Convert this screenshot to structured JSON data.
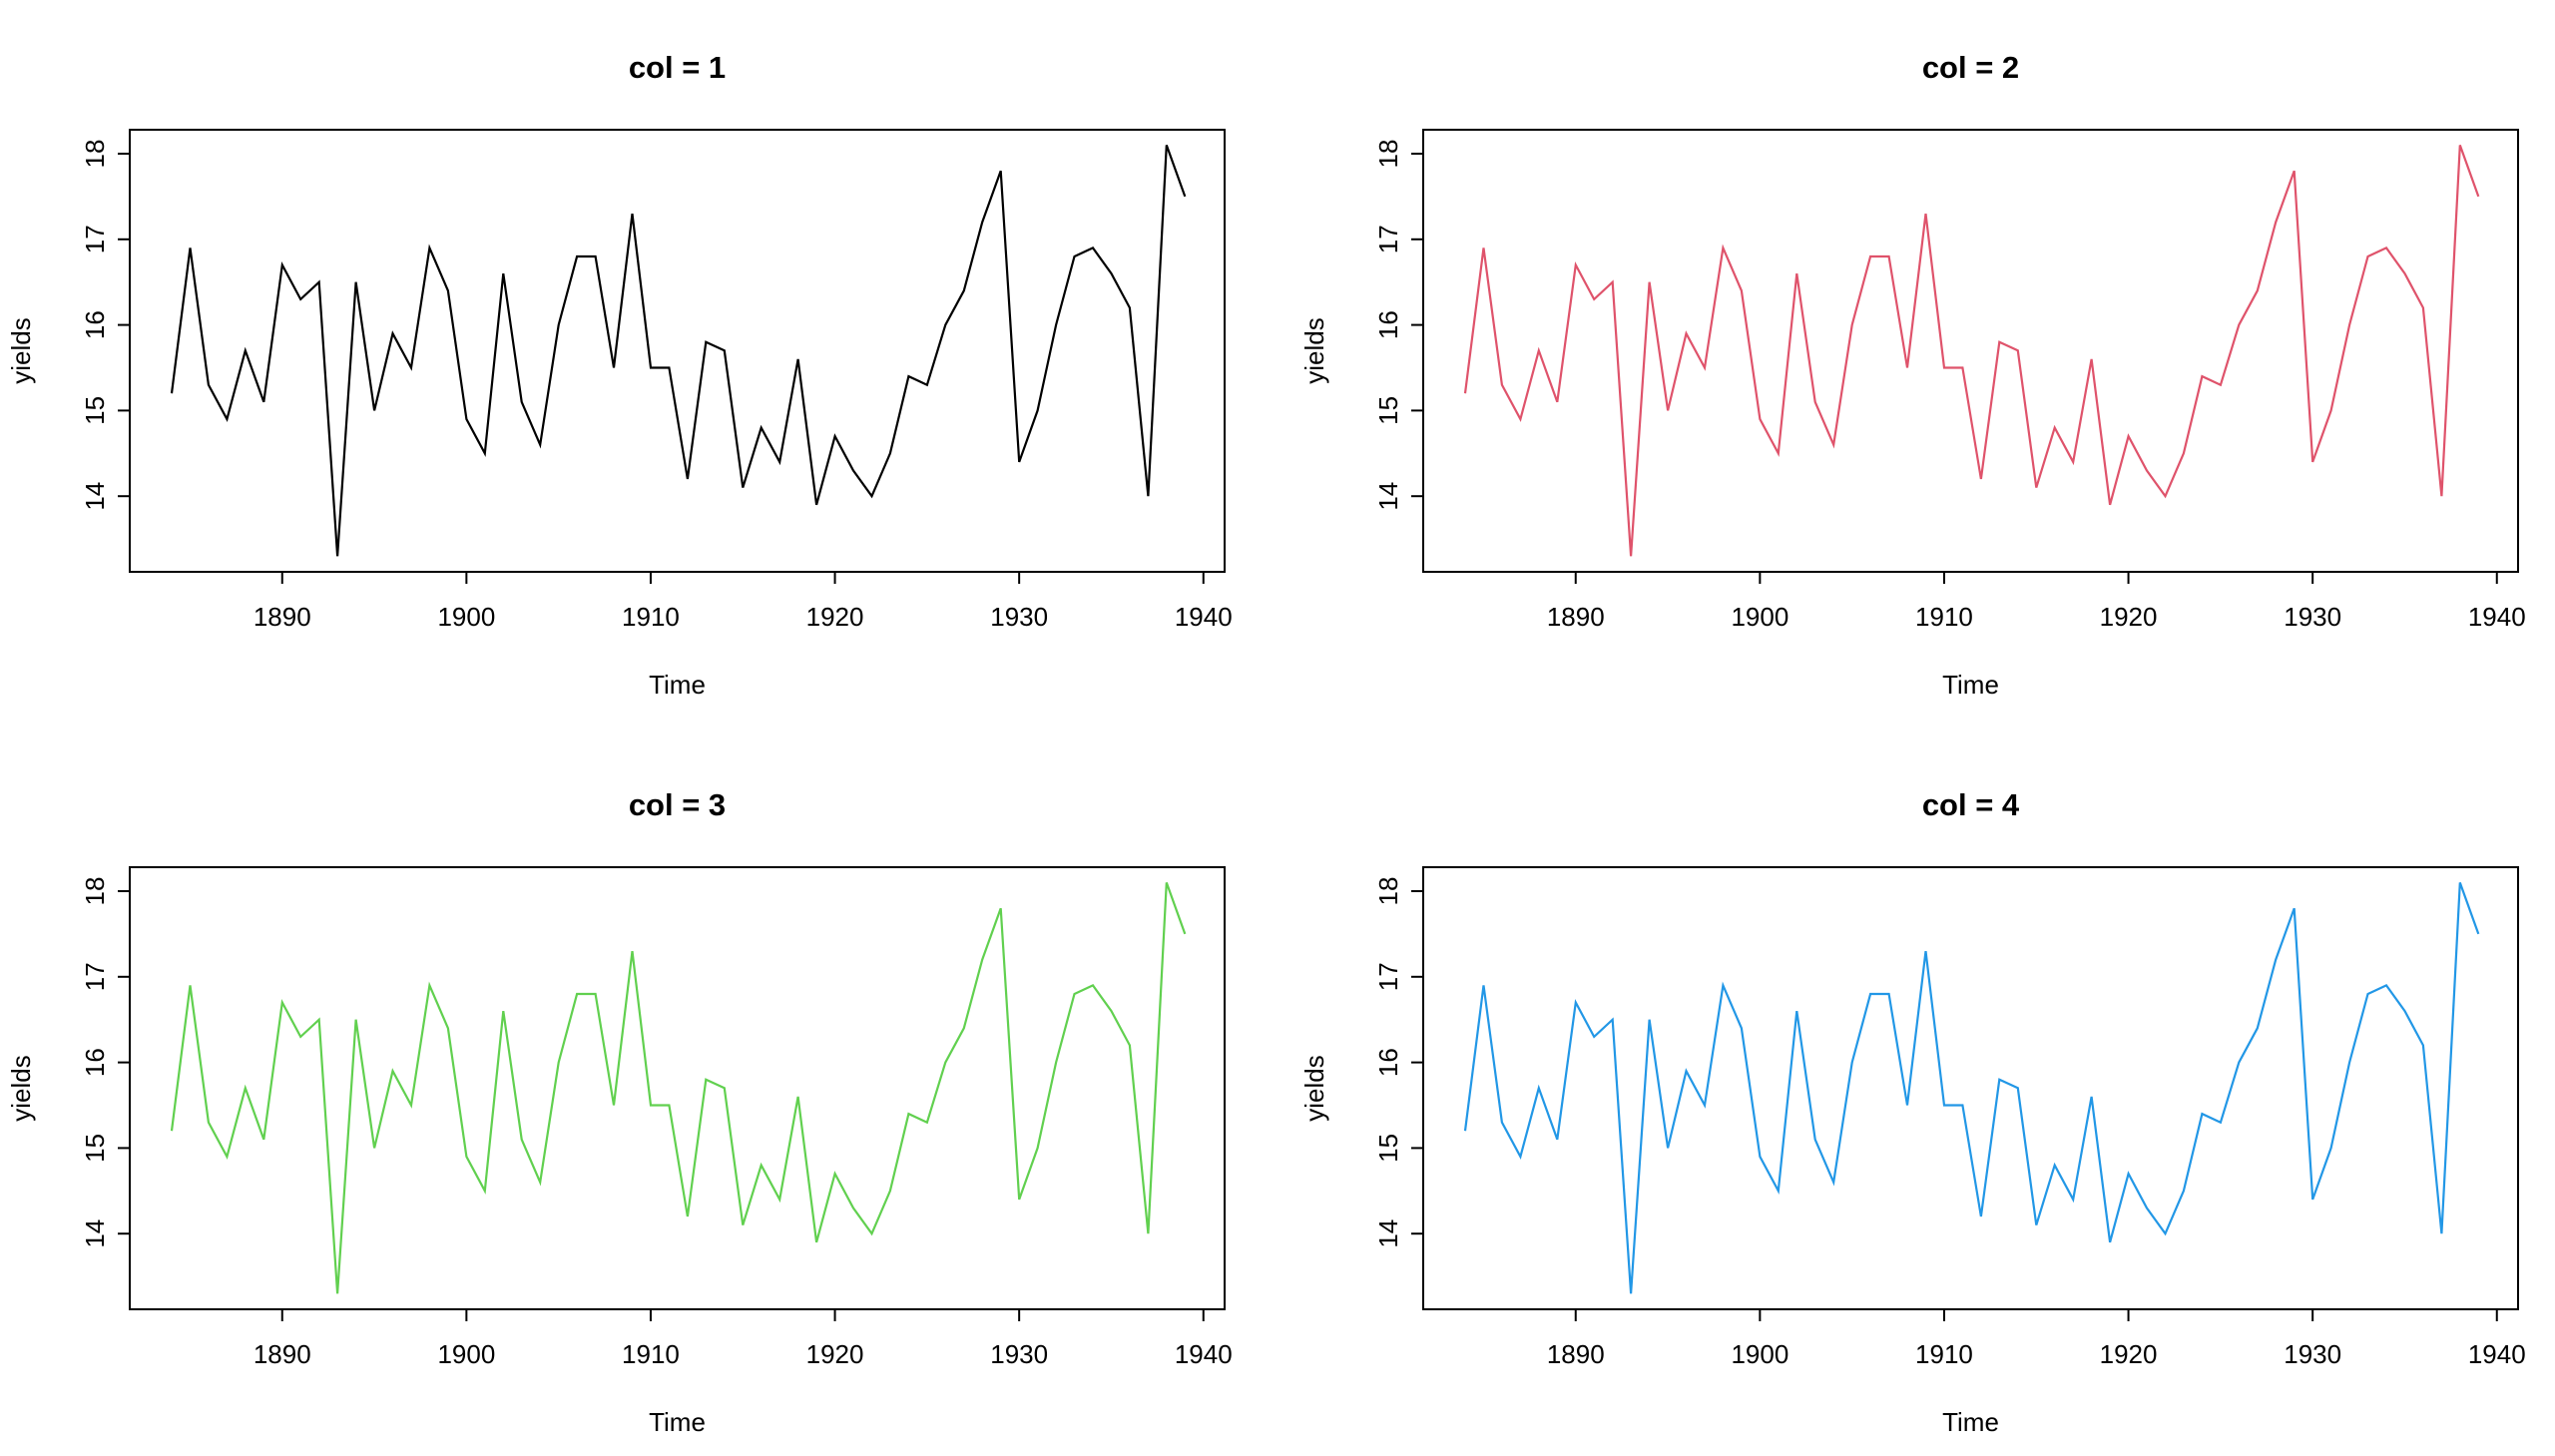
{
  "chart_data": [
    {
      "type": "line",
      "title": "col = 1",
      "xlabel": "Time",
      "ylabel": "yields",
      "color": "#000000"
    },
    {
      "type": "line",
      "title": "col = 2",
      "xlabel": "Time",
      "ylabel": "yields",
      "color": "#DF536B"
    },
    {
      "type": "line",
      "title": "col = 3",
      "xlabel": "Time",
      "ylabel": "yields",
      "color": "#61D04F"
    },
    {
      "type": "line",
      "title": "col = 4",
      "xlabel": "Time",
      "ylabel": "yields",
      "color": "#2297E6"
    }
  ],
  "series": {
    "start_year": 1884,
    "values": [
      15.2,
      16.9,
      15.3,
      14.9,
      15.7,
      15.1,
      16.7,
      16.3,
      16.5,
      13.3,
      16.5,
      15.0,
      15.9,
      15.5,
      16.9,
      16.4,
      14.9,
      14.5,
      16.6,
      15.1,
      14.6,
      16.0,
      16.8,
      16.8,
      15.5,
      17.3,
      15.5,
      15.5,
      14.2,
      15.8,
      15.7,
      14.1,
      14.8,
      14.4,
      15.6,
      13.9,
      14.7,
      14.3,
      14.0,
      14.5,
      15.4,
      15.3,
      16.0,
      16.4,
      17.2,
      17.8,
      14.4,
      15.0,
      16.0,
      16.8,
      16.9,
      16.6,
      16.2,
      14.0,
      18.1,
      17.5
    ]
  },
  "axes": {
    "xticks": [
      "1890",
      "1900",
      "1910",
      "1920",
      "1930",
      "1940"
    ],
    "yticks": [
      "14",
      "15",
      "16",
      "17",
      "18"
    ],
    "xlim": [
      1884,
      1940
    ],
    "ylim": [
      13.3,
      18.1
    ]
  }
}
